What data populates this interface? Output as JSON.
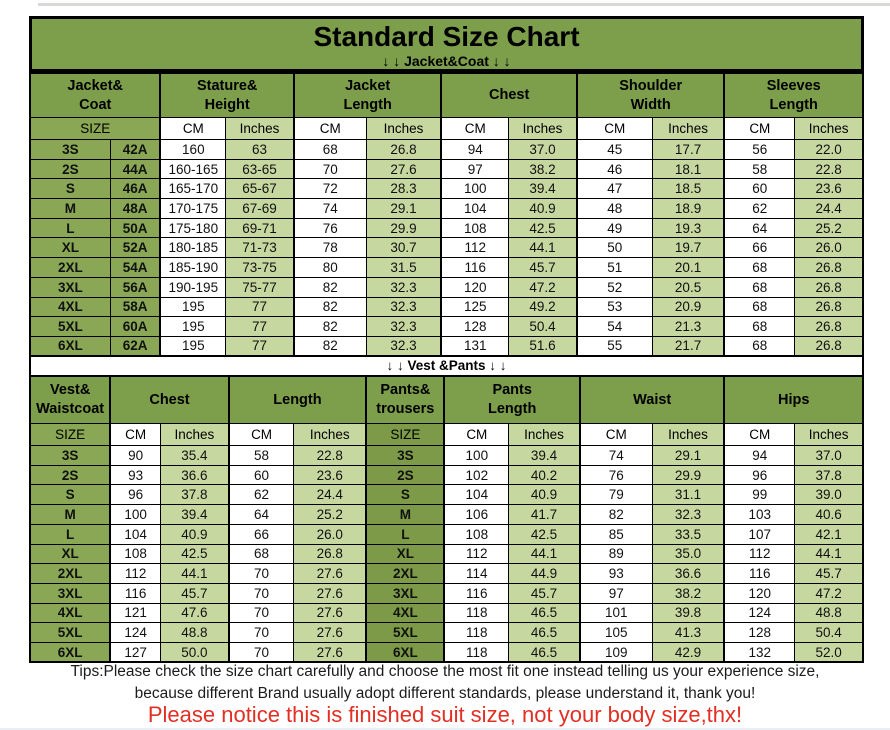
{
  "meta": {
    "title": "Standard Size Chart",
    "jacket_section_label": "↓ ↓  Jacket&Coat ↓ ↓",
    "vest_section_label": "↓ ↓  Vest &Pants ↓ ↓"
  },
  "colors": {
    "band_green": "#7d9e4a",
    "header_green": "#7d9e4a",
    "size_cell_green": "#89a755",
    "pants_size_cell_green": "#7d9a48",
    "light_cell_green": "#c7d7a0",
    "notice_red": "#e12f23"
  },
  "chart_data": [
    {
      "type": "table",
      "name": "jacket-and-coat",
      "column_groups": [
        "Jacket&\nCoat",
        "Stature&\nHeight",
        "Jacket\nLength",
        "Chest",
        "Shoulder\nWidth",
        "Sleeves\nLength"
      ],
      "subheader": [
        "SIZE",
        "CM",
        "Inches",
        "CM",
        "Inches",
        "CM",
        "Inches",
        "CM",
        "Inches",
        "CM",
        "Inches"
      ],
      "rows": [
        [
          "3S",
          "42A",
          "160",
          "63",
          "68",
          "26.8",
          "94",
          "37.0",
          "45",
          "17.7",
          "56",
          "22.0"
        ],
        [
          "2S",
          "44A",
          "160-165",
          "63-65",
          "70",
          "27.6",
          "97",
          "38.2",
          "46",
          "18.1",
          "58",
          "22.8"
        ],
        [
          "S",
          "46A",
          "165-170",
          "65-67",
          "72",
          "28.3",
          "100",
          "39.4",
          "47",
          "18.5",
          "60",
          "23.6"
        ],
        [
          "M",
          "48A",
          "170-175",
          "67-69",
          "74",
          "29.1",
          "104",
          "40.9",
          "48",
          "18.9",
          "62",
          "24.4"
        ],
        [
          "L",
          "50A",
          "175-180",
          "69-71",
          "76",
          "29.9",
          "108",
          "42.5",
          "49",
          "19.3",
          "64",
          "25.2"
        ],
        [
          "XL",
          "52A",
          "180-185",
          "71-73",
          "78",
          "30.7",
          "112",
          "44.1",
          "50",
          "19.7",
          "66",
          "26.0"
        ],
        [
          "2XL",
          "54A",
          "185-190",
          "73-75",
          "80",
          "31.5",
          "116",
          "45.7",
          "51",
          "20.1",
          "68",
          "26.8"
        ],
        [
          "3XL",
          "56A",
          "190-195",
          "75-77",
          "82",
          "32.3",
          "120",
          "47.2",
          "52",
          "20.5",
          "68",
          "26.8"
        ],
        [
          "4XL",
          "58A",
          "195",
          "77",
          "82",
          "32.3",
          "125",
          "49.2",
          "53",
          "20.9",
          "68",
          "26.8"
        ],
        [
          "5XL",
          "60A",
          "195",
          "77",
          "82",
          "32.3",
          "128",
          "50.4",
          "54",
          "21.3",
          "68",
          "26.8"
        ],
        [
          "6XL",
          "62A",
          "195",
          "77",
          "82",
          "32.3",
          "131",
          "51.6",
          "55",
          "21.7",
          "68",
          "26.8"
        ]
      ]
    },
    {
      "type": "table",
      "name": "vest-and-pants",
      "column_groups": [
        "Vest&\nWaistcoat",
        "Chest",
        "Length",
        "Pants&\ntrousers",
        "Pants\nLength",
        "Waist",
        "Hips"
      ],
      "subheader": [
        "SIZE",
        "CM",
        "Inches",
        "CM",
        "Inches",
        "SIZE",
        "CM",
        "Inches",
        "CM",
        "Inches",
        "CM",
        "Inches"
      ],
      "rows": [
        [
          "3S",
          "90",
          "35.4",
          "58",
          "22.8",
          "3S",
          "100",
          "39.4",
          "74",
          "29.1",
          "94",
          "37.0"
        ],
        [
          "2S",
          "93",
          "36.6",
          "60",
          "23.6",
          "2S",
          "102",
          "40.2",
          "76",
          "29.9",
          "96",
          "37.8"
        ],
        [
          "S",
          "96",
          "37.8",
          "62",
          "24.4",
          "S",
          "104",
          "40.9",
          "79",
          "31.1",
          "99",
          "39.0"
        ],
        [
          "M",
          "100",
          "39.4",
          "64",
          "25.2",
          "M",
          "106",
          "41.7",
          "82",
          "32.3",
          "103",
          "40.6"
        ],
        [
          "L",
          "104",
          "40.9",
          "66",
          "26.0",
          "L",
          "108",
          "42.5",
          "85",
          "33.5",
          "107",
          "42.1"
        ],
        [
          "XL",
          "108",
          "42.5",
          "68",
          "26.8",
          "XL",
          "112",
          "44.1",
          "89",
          "35.0",
          "112",
          "44.1"
        ],
        [
          "2XL",
          "112",
          "44.1",
          "70",
          "27.6",
          "2XL",
          "114",
          "44.9",
          "93",
          "36.6",
          "116",
          "45.7"
        ],
        [
          "3XL",
          "116",
          "45.7",
          "70",
          "27.6",
          "3XL",
          "116",
          "45.7",
          "97",
          "38.2",
          "120",
          "47.2"
        ],
        [
          "4XL",
          "121",
          "47.6",
          "70",
          "27.6",
          "4XL",
          "118",
          "46.5",
          "101",
          "39.8",
          "124",
          "48.8"
        ],
        [
          "5XL",
          "124",
          "48.8",
          "70",
          "27.6",
          "5XL",
          "118",
          "46.5",
          "105",
          "41.3",
          "128",
          "50.4"
        ],
        [
          "6XL",
          "127",
          "50.0",
          "70",
          "27.6",
          "6XL",
          "118",
          "46.5",
          "109",
          "42.9",
          "132",
          "52.0"
        ]
      ]
    }
  ],
  "tips": {
    "line1": "Tips:Please check the size chart carefully and choose the most fit one instead telling us your experience size,",
    "line2": "because different Brand usually adopt different standards, please understand it, thank you!",
    "notice": "Please notice this is finished suit size, not your body size,thx!"
  }
}
